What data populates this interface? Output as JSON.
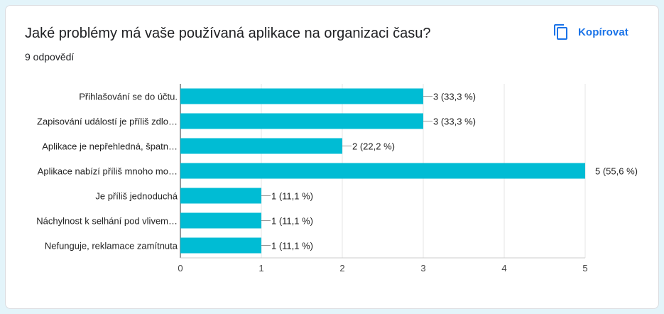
{
  "header": {
    "title": "Jaké problémy má vaše používaná aplikace na organizaci času?",
    "response_count": "9 odpovědí",
    "copy_label": "Kopírovat",
    "copy_icon": "copy-icon"
  },
  "colors": {
    "bar": "#00bcd4",
    "accent": "#1a73e8",
    "text": "#202124"
  },
  "chart_data": {
    "type": "bar",
    "orientation": "horizontal",
    "categories": [
      "Přihlašování se do účtu.",
      "Zapisování událostí je příliš zdlo…",
      "Aplikace je nepřehledná, špatn…",
      "Aplikace nabízí příliš mnoho mo…",
      "Je příliš jednoduchá",
      "Náchylnost k selhání pod vlivem…",
      "Nefunguje, reklamace zamítnuta"
    ],
    "values": [
      3,
      3,
      2,
      5,
      1,
      1,
      1
    ],
    "data_labels": [
      "3 (33,3 %)",
      "3 (33,3 %)",
      "2 (22,2 %)",
      "5 (55,6 %)",
      "1 (11,1 %)",
      "1 (11,1 %)",
      "1 (11,1 %)"
    ],
    "xticks": [
      "0",
      "1",
      "2",
      "3",
      "4",
      "5"
    ],
    "xlim": [
      0,
      5
    ],
    "grid": true,
    "legend": "none"
  }
}
